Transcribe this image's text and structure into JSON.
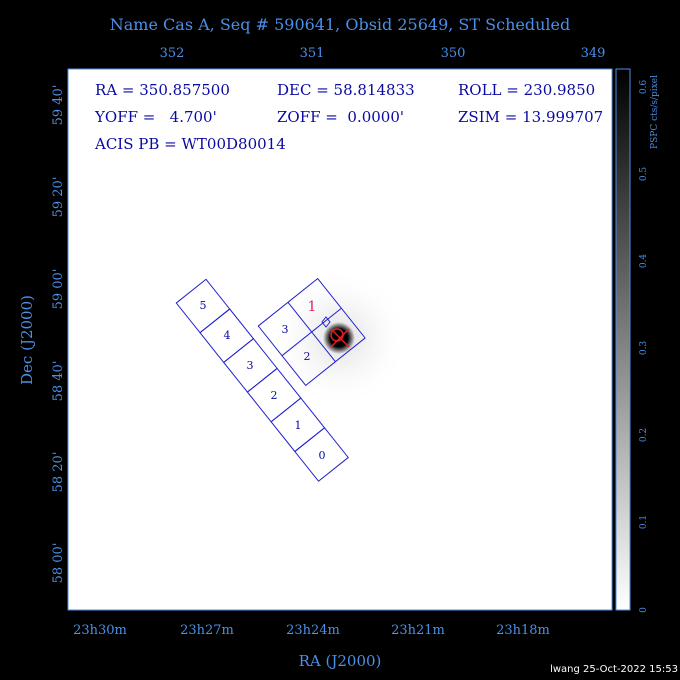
{
  "header": {
    "title": "Name Cas A, Seq # 590641, Obsid 25649, ST Scheduled"
  },
  "top_axis": {
    "ticks": [
      "352",
      "351",
      "350",
      "349"
    ]
  },
  "info": {
    "rows": [
      [
        "RA = 350.857500",
        "DEC = 58.814833",
        "ROLL = 230.9850"
      ],
      [
        "YOFF =   4.700'",
        "ZOFF =  0.0000'",
        "ZSIM = 13.999707"
      ],
      [
        "ACIS PB = WT00D80014"
      ]
    ]
  },
  "left_axis": {
    "label": "Dec (J2000)",
    "ticks": [
      "59 40'",
      "59 20'",
      "59 00'",
      "58 40'",
      "58 20'",
      "58 00'"
    ]
  },
  "bottom_axis": {
    "label": "RA (J2000)",
    "ticks": [
      "23h30m",
      "23h27m",
      "23h24m",
      "23h21m",
      "23h18m"
    ]
  },
  "colorbar": {
    "label": "PSPC cts/s/pixel",
    "ticks": [
      "0",
      "0.1",
      "0.2",
      "0.3",
      "0.4",
      "0.5",
      "0.6"
    ]
  },
  "chips": {
    "acis_s": [
      "5",
      "4",
      "3",
      "2",
      "1",
      "0"
    ],
    "acis_i": [
      "1",
      "3",
      "2"
    ]
  },
  "footer": "lwang 25-Oct-2022 15:53"
}
